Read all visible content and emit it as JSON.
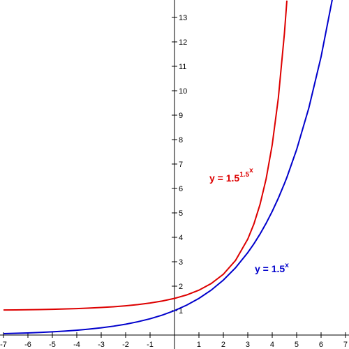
{
  "chart_data": {
    "type": "line",
    "x": [
      -7,
      -6.5,
      -6,
      -5.5,
      -5,
      -4.5,
      -4,
      -3.5,
      -3,
      -2.5,
      -2,
      -1.5,
      -1,
      -0.5,
      0,
      0.5,
      1,
      1.5,
      2,
      2.5,
      3,
      3.25,
      3.5,
      3.75,
      4,
      4.25,
      4.5,
      4.6,
      5,
      5.5,
      6,
      6.5
    ],
    "series": [
      {
        "color": "#0000cc",
        "values": [
          0.0585,
          0.0717,
          0.0878,
          0.1076,
          0.1317,
          0.1613,
          0.1975,
          0.2419,
          0.2963,
          0.3629,
          0.4444,
          0.5443,
          0.6667,
          0.8165,
          1,
          1.2247,
          1.5,
          1.8371,
          2.25,
          2.7557,
          3.375,
          3.7351,
          4.1335,
          4.5744,
          5.0625,
          5.6028,
          6.2003,
          6.4537,
          7.5938,
          9.3004,
          11.3906,
          13.9506
        ]
      },
      {
        "color": "#dd0000",
        "values": [
          1.024,
          1.0295,
          1.0362,
          1.0446,
          1.0549,
          1.0676,
          1.0834,
          1.1031,
          1.1277,
          1.1585,
          1.1975,
          1.2469,
          1.3104,
          1.3924,
          1.5,
          1.6431,
          1.8371,
          2.1062,
          2.49,
          3.0568,
          3.9293,
          4.546,
          5.3443,
          6.39,
          7.7891,
          9.696,
          12.354,
          13.69,
          null,
          null,
          null,
          null
        ]
      }
    ],
    "annotations": [
      {
        "base": "y = 1.5",
        "sup": "x",
        "color": "#0000cc"
      },
      {
        "base": "y = 1.5",
        "sup": "1.5",
        "supsup": "x",
        "color": "#dd0000"
      }
    ],
    "xlim": [
      -7.143,
      7.143
    ],
    "ylim": [
      -0.571,
      13.714
    ],
    "xticks": [
      -7,
      -6,
      -5,
      -4,
      -3,
      -2,
      -1,
      1,
      2,
      3,
      4,
      5,
      6,
      7
    ],
    "yticks": [
      1,
      2,
      3,
      4,
      5,
      6,
      7,
      8,
      9,
      10,
      11,
      12,
      13
    ]
  }
}
